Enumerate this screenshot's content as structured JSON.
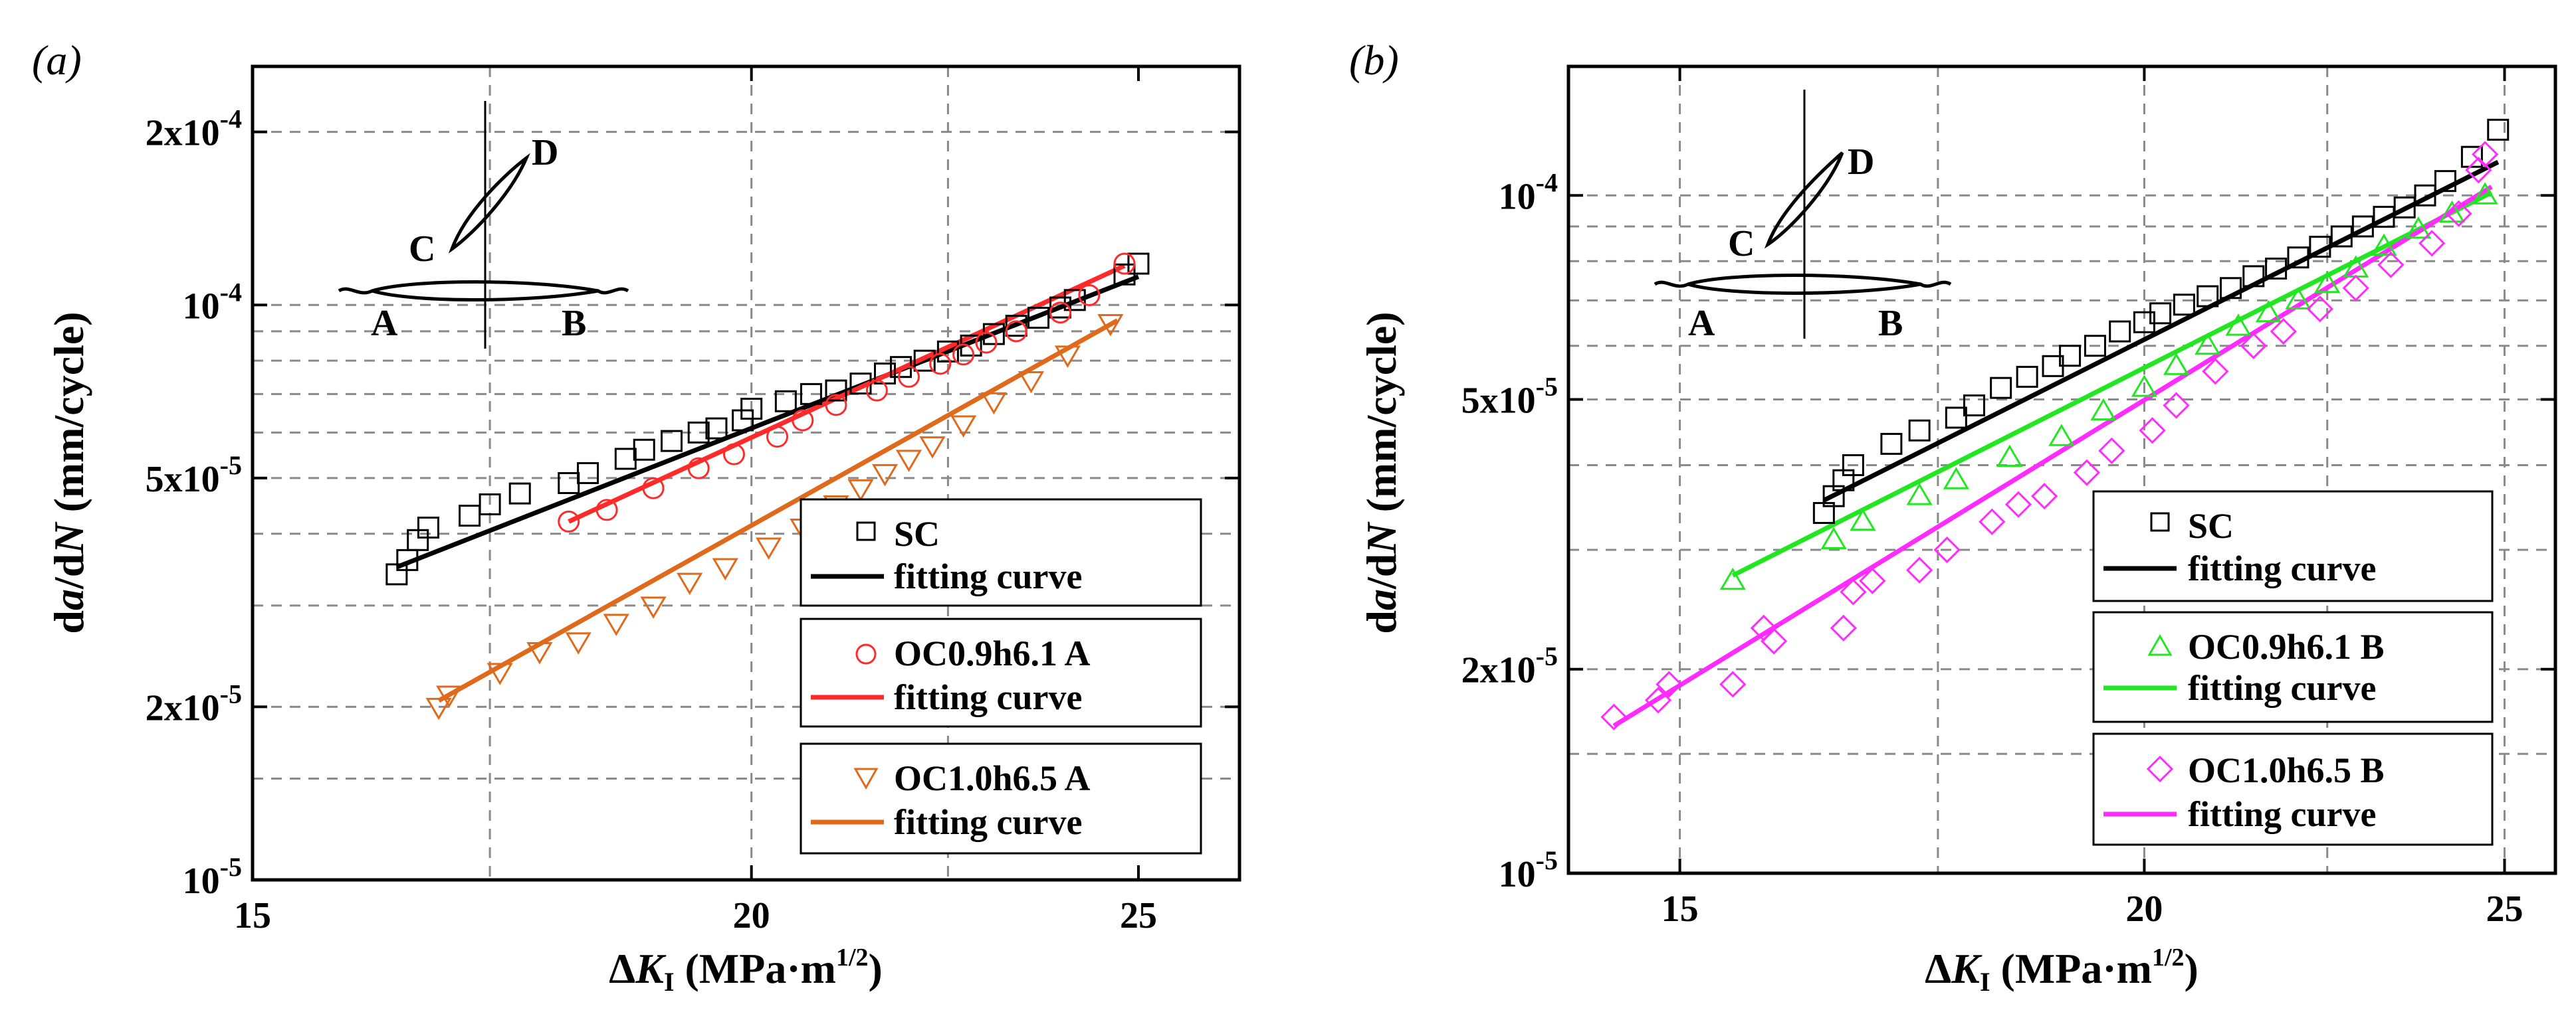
{
  "figure": {
    "panels": [
      "(a)",
      "(b)"
    ],
    "x_axis_label": {
      "delta": "Δ",
      "K": "K",
      "sub": "I",
      "unit_open": " (MPa·m",
      "unit_exp": "1/2",
      "unit_close": ")"
    },
    "y_axis_label": {
      "d1": "d",
      "a": "a",
      "slash": "/d",
      "N": "N",
      "unit": " (mm/cycle)"
    },
    "inset_labels": [
      "A",
      "B",
      "C",
      "D"
    ]
  },
  "chart_data": [
    {
      "panel": "(a)",
      "type": "scatter",
      "xscale": "log",
      "yscale": "log",
      "xlim": [
        15,
        26.5
      ],
      "ylim": [
        1e-05,
        0.00026
      ],
      "xticks": [
        {
          "v": 15,
          "label": "15"
        },
        {
          "v": 20,
          "label": "20"
        },
        {
          "v": 25,
          "label": "25"
        }
      ],
      "yticks": [
        {
          "v": 1e-05,
          "base": "10",
          "exp": "-5"
        },
        {
          "v": 2e-05,
          "base": "2x10",
          "exp": "-5"
        },
        {
          "v": 5e-05,
          "base": "5x10",
          "exp": "-5"
        },
        {
          "v": 0.0001,
          "base": "10",
          "exp": "-4"
        },
        {
          "v": 0.0002,
          "base": "2x10",
          "exp": "-4"
        }
      ],
      "grid": "dashed",
      "legend_position": "lower-right",
      "series": [
        {
          "name": "SC",
          "fit_label": "fitting curve",
          "marker": "square",
          "color": "#000000",
          "x": [
            16.3,
            16.4,
            16.5,
            16.6,
            17.0,
            17.2,
            17.5,
            18.0,
            18.2,
            18.6,
            18.8,
            19.1,
            19.4,
            19.6,
            19.9,
            20.0,
            20.4,
            20.7,
            21.0,
            21.3,
            21.6,
            21.8,
            22.1,
            22.4,
            22.7,
            23.0,
            23.3,
            23.6,
            23.9,
            24.1,
            24.8,
            25.0
          ],
          "y": [
            3.4e-05,
            3.6e-05,
            3.9e-05,
            4.1e-05,
            4.3e-05,
            4.5e-05,
            4.7e-05,
            4.9e-05,
            5.1e-05,
            5.4e-05,
            5.6e-05,
            5.8e-05,
            6e-05,
            6.1e-05,
            6.3e-05,
            6.6e-05,
            6.8e-05,
            7e-05,
            7.1e-05,
            7.3e-05,
            7.6e-05,
            7.8e-05,
            8e-05,
            8.3e-05,
            8.5e-05,
            8.9e-05,
            9.2e-05,
            9.5e-05,
            9.9e-05,
            0.000102,
            0.000113,
            0.000118
          ],
          "fit": [
            [
              16.3,
              3.5e-05
            ],
            [
              25.0,
              0.000112
            ]
          ]
        },
        {
          "name": "OC0.9h6.1  A",
          "fit_label": "fitting curve",
          "marker": "circle",
          "color": "#ff2a2a",
          "x": [
            18.0,
            18.4,
            18.9,
            19.4,
            19.8,
            20.3,
            20.6,
            21.0,
            21.5,
            21.9,
            22.3,
            22.6,
            22.9,
            23.3,
            23.9,
            24.3,
            24.8
          ],
          "y": [
            4.2e-05,
            4.4e-05,
            4.8e-05,
            5.2e-05,
            5.5e-05,
            5.9e-05,
            6.3e-05,
            6.7e-05,
            7.1e-05,
            7.5e-05,
            7.9e-05,
            8.2e-05,
            8.6e-05,
            9e-05,
            9.7e-05,
            0.000104,
            0.000118
          ],
          "fit": [
            [
              18.0,
              4.2e-05
            ],
            [
              24.8,
              0.000117
            ]
          ]
        },
        {
          "name": "OC1.0h6.5  A",
          "fit_label": "fitting curve",
          "marker": "triangle-down",
          "color": "#e06a1c",
          "x": [
            16.7,
            16.8,
            17.3,
            17.7,
            18.1,
            18.5,
            18.9,
            19.3,
            19.7,
            20.2,
            20.6,
            21.0,
            21.3,
            21.6,
            21.9,
            22.2,
            22.6,
            23.0,
            23.5,
            24.0,
            24.6
          ],
          "y": [
            2e-05,
            2.1e-05,
            2.3e-05,
            2.5e-05,
            2.6e-05,
            2.8e-05,
            3e-05,
            3.3e-05,
            3.5e-05,
            3.8e-05,
            4.1e-05,
            4.5e-05,
            4.8e-05,
            5.1e-05,
            5.4e-05,
            5.7e-05,
            6.2e-05,
            6.8e-05,
            7.4e-05,
            8.2e-05,
            9.3e-05
          ],
          "fit": [
            [
              16.7,
              2.05e-05
            ],
            [
              24.7,
              9.4e-05
            ]
          ]
        }
      ]
    },
    {
      "panel": "(b)",
      "type": "scatter",
      "xscale": "log",
      "yscale": "log",
      "xlim": [
        14.0,
        25.8
      ],
      "ylim": [
        1e-05,
        0.000155
      ],
      "xticks": [
        {
          "v": 15,
          "label": "15"
        },
        {
          "v": 20,
          "label": "20"
        },
        {
          "v": 25,
          "label": "25"
        }
      ],
      "yticks": [
        {
          "v": 1e-05,
          "base": "10",
          "exp": "-5"
        },
        {
          "v": 2e-05,
          "base": "2x10",
          "exp": "-5"
        },
        {
          "v": 5e-05,
          "base": "5x10",
          "exp": "-5"
        },
        {
          "v": 0.0001,
          "base": "10",
          "exp": "-4"
        }
      ],
      "grid": "dashed",
      "legend_position": "lower-right",
      "series": [
        {
          "name": "SC",
          "fit_label": "fitting curve",
          "marker": "square",
          "color": "#000000",
          "x": [
            16.4,
            16.5,
            16.6,
            16.7,
            17.1,
            17.4,
            17.8,
            18.0,
            18.3,
            18.6,
            18.9,
            19.1,
            19.4,
            19.7,
            20.0,
            20.2,
            20.5,
            20.8,
            21.1,
            21.4,
            21.7,
            22.0,
            22.3,
            22.6,
            22.9,
            23.2,
            23.5,
            23.8,
            24.1,
            24.5,
            24.9
          ],
          "y": [
            3.4e-05,
            3.6e-05,
            3.8e-05,
            4e-05,
            4.3e-05,
            4.5e-05,
            4.7e-05,
            4.9e-05,
            5.2e-05,
            5.4e-05,
            5.6e-05,
            5.8e-05,
            6e-05,
            6.3e-05,
            6.5e-05,
            6.7e-05,
            6.9e-05,
            7.1e-05,
            7.3e-05,
            7.6e-05,
            7.8e-05,
            8.1e-05,
            8.4e-05,
            8.7e-05,
            9e-05,
            9.3e-05,
            9.6e-05,
            0.0001,
            0.000105,
            0.000114,
            0.000125
          ],
          "fit": [
            [
              16.4,
              3.55e-05
            ],
            [
              24.9,
              0.000112
            ]
          ]
        },
        {
          "name": "OC0.9h6.1  B",
          "fit_label": "fitting curve",
          "marker": "triangle-up",
          "color": "#22e622",
          "x": [
            15.5,
            16.5,
            16.8,
            17.4,
            17.8,
            18.4,
            19.0,
            19.5,
            20.0,
            20.4,
            20.8,
            21.2,
            21.6,
            22.0,
            22.4,
            22.8,
            23.2,
            23.7,
            24.2,
            24.7
          ],
          "y": [
            2.7e-05,
            3.1e-05,
            3.3e-05,
            3.6e-05,
            3.8e-05,
            4.1e-05,
            4.4e-05,
            4.8e-05,
            5.2e-05,
            5.6e-05,
            6e-05,
            6.4e-05,
            6.7e-05,
            7e-05,
            7.4e-05,
            7.8e-05,
            8.4e-05,
            8.9e-05,
            9.4e-05,
            0.0001
          ],
          "fit": [
            [
              15.5,
              2.75e-05
            ],
            [
              24.8,
              0.000101
            ]
          ]
        },
        {
          "name": "OC1.0h6.5  B",
          "fit_label": "fitting curve",
          "marker": "diamond",
          "color": "#ff2bff",
          "x": [
            14.4,
            14.8,
            14.9,
            15.5,
            15.8,
            15.9,
            16.6,
            16.7,
            16.9,
            17.4,
            17.7,
            18.2,
            18.5,
            18.8,
            19.3,
            19.6,
            20.1,
            20.4,
            20.9,
            21.4,
            21.8,
            22.3,
            22.8,
            23.3,
            23.9,
            24.3,
            24.6,
            24.7
          ],
          "y": [
            1.7e-05,
            1.8e-05,
            1.9e-05,
            1.9e-05,
            2.3e-05,
            2.2e-05,
            2.3e-05,
            2.6e-05,
            2.7e-05,
            2.8e-05,
            3e-05,
            3.3e-05,
            3.5e-05,
            3.6e-05,
            3.9e-05,
            4.2e-05,
            4.5e-05,
            4.9e-05,
            5.5e-05,
            6e-05,
            6.3e-05,
            6.8e-05,
            7.3e-05,
            7.9e-05,
            8.5e-05,
            9.4e-05,
            0.000109,
            0.000115
          ],
          "fit": [
            [
              14.4,
              1.65e-05
            ],
            [
              24.8,
              0.000103
            ]
          ]
        }
      ]
    }
  ]
}
